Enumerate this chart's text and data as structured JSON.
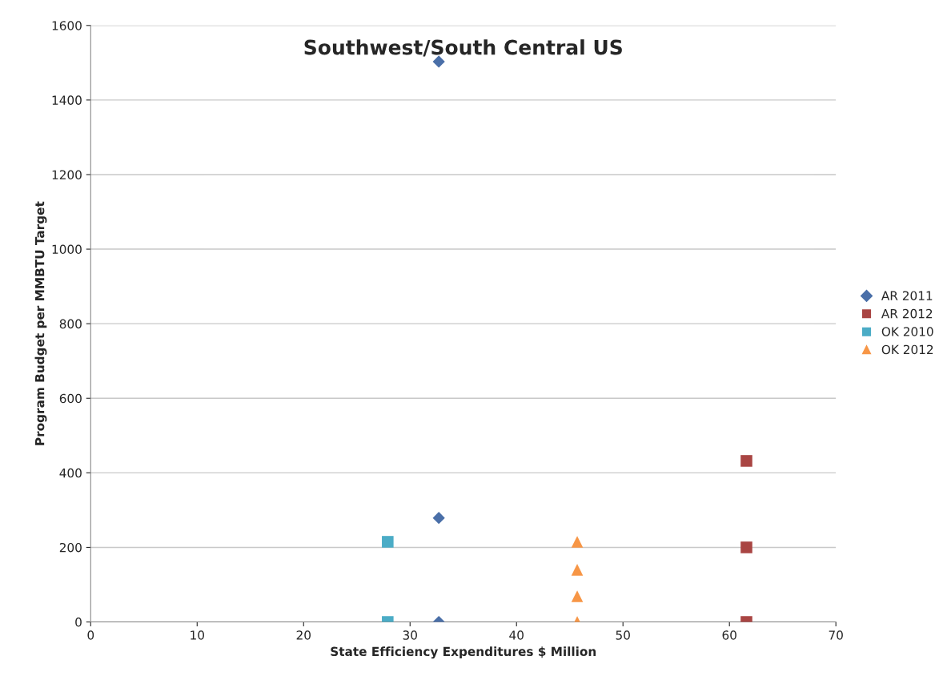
{
  "chart_data": {
    "type": "scatter",
    "title": "Southwest/South Central US",
    "xlabel": "State Efficiency Expenditures $ Million",
    "ylabel": "Program Budget per MMBTU Target",
    "xlim": [
      0,
      70
    ],
    "xticks": [
      0,
      10,
      20,
      30,
      40,
      50,
      60,
      70
    ],
    "ylim": [
      0,
      1600
    ],
    "yticks": [
      0,
      200,
      400,
      600,
      800,
      1000,
      1200,
      1400,
      1600
    ],
    "grid": "y",
    "legend": "right",
    "series": [
      {
        "name": "AR 2011",
        "color": "#4a6fa8",
        "marker": "diamond",
        "x": [
          32.7,
          32.7,
          32.7
        ],
        "values": [
          1503,
          279,
          0
        ]
      },
      {
        "name": "AR 2012",
        "color": "#a94543",
        "marker": "square",
        "x": [
          61.6,
          61.6,
          61.6
        ],
        "values": [
          432,
          200,
          0
        ]
      },
      {
        "name": "OK 2010",
        "color": "#4bacc6",
        "marker": "square",
        "x": [
          27.9,
          27.9
        ],
        "values": [
          215,
          0
        ]
      },
      {
        "name": "OK 2012",
        "color": "#f79646",
        "marker": "triangle",
        "x": [
          45.7,
          45.7,
          45.7,
          45.7
        ],
        "values": [
          215,
          140,
          69,
          0
        ]
      }
    ]
  }
}
